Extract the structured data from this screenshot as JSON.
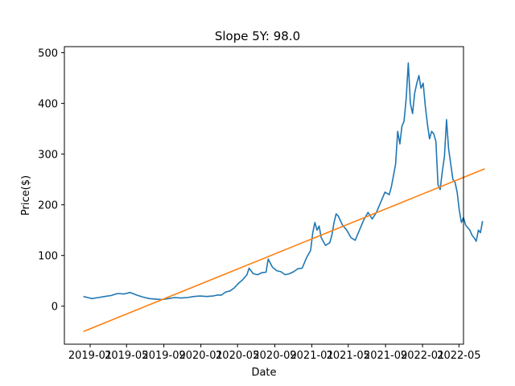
{
  "chart_data": {
    "type": "line",
    "title": "Slope 5Y: 98.0",
    "xlabel": "Date",
    "ylabel": "Price($)",
    "xlim": [
      "2018-10-08",
      "2022-05-16"
    ],
    "ylim": [
      -75,
      512
    ],
    "grid": false,
    "legend": "none",
    "x_ticks": [
      "2019-01",
      "2019-05",
      "2019-09",
      "2020-01",
      "2020-05",
      "2020-09",
      "2021-01",
      "2021-05",
      "2021-09",
      "2022-01",
      "2022-05"
    ],
    "y_ticks": [
      0,
      100,
      200,
      300,
      400,
      500
    ],
    "series": [
      {
        "color": "#1f77b4",
        "points": [
          [
            "2018-12-10",
            19
          ],
          [
            "2018-12-24",
            17
          ],
          [
            "2019-01-07",
            15
          ],
          [
            "2019-01-28",
            17
          ],
          [
            "2019-02-18",
            19
          ],
          [
            "2019-03-11",
            21
          ],
          [
            "2019-04-01",
            25
          ],
          [
            "2019-04-22",
            24
          ],
          [
            "2019-05-13",
            27
          ],
          [
            "2019-06-03",
            22
          ],
          [
            "2019-06-24",
            18
          ],
          [
            "2019-07-15",
            15
          ],
          [
            "2019-08-05",
            14
          ],
          [
            "2019-08-26",
            13
          ],
          [
            "2019-09-16",
            15
          ],
          [
            "2019-10-07",
            17
          ],
          [
            "2019-10-28",
            16
          ],
          [
            "2019-11-18",
            17
          ],
          [
            "2019-12-09",
            19
          ],
          [
            "2019-12-30",
            20
          ],
          [
            "2020-01-20",
            19
          ],
          [
            "2020-02-10",
            20
          ],
          [
            "2020-02-24",
            22
          ],
          [
            "2020-03-09",
            22
          ],
          [
            "2020-03-23",
            28
          ],
          [
            "2020-04-06",
            30
          ],
          [
            "2020-04-20",
            36
          ],
          [
            "2020-05-04",
            45
          ],
          [
            "2020-05-18",
            52
          ],
          [
            "2020-06-01",
            62
          ],
          [
            "2020-06-08",
            75
          ],
          [
            "2020-06-22",
            64
          ],
          [
            "2020-07-06",
            62
          ],
          [
            "2020-07-20",
            66
          ],
          [
            "2020-08-03",
            67
          ],
          [
            "2020-08-10",
            93
          ],
          [
            "2020-08-24",
            77
          ],
          [
            "2020-09-07",
            70
          ],
          [
            "2020-09-21",
            68
          ],
          [
            "2020-10-05",
            62
          ],
          [
            "2020-10-19",
            64
          ],
          [
            "2020-11-02",
            68
          ],
          [
            "2020-11-16",
            74
          ],
          [
            "2020-11-30",
            75
          ],
          [
            "2020-12-14",
            95
          ],
          [
            "2020-12-28",
            110
          ],
          [
            "2021-01-04",
            145
          ],
          [
            "2021-01-11",
            165
          ],
          [
            "2021-01-18",
            150
          ],
          [
            "2021-01-25",
            158
          ],
          [
            "2021-02-01",
            135
          ],
          [
            "2021-02-15",
            120
          ],
          [
            "2021-03-01",
            125
          ],
          [
            "2021-03-08",
            140
          ],
          [
            "2021-03-15",
            165
          ],
          [
            "2021-03-22",
            182
          ],
          [
            "2021-03-29",
            178
          ],
          [
            "2021-04-12",
            160
          ],
          [
            "2021-04-26",
            150
          ],
          [
            "2021-05-10",
            135
          ],
          [
            "2021-05-24",
            130
          ],
          [
            "2021-06-07",
            150
          ],
          [
            "2021-06-21",
            170
          ],
          [
            "2021-07-05",
            185
          ],
          [
            "2021-07-19",
            172
          ],
          [
            "2021-08-02",
            185
          ],
          [
            "2021-08-16",
            205
          ],
          [
            "2021-08-30",
            225
          ],
          [
            "2021-09-13",
            220
          ],
          [
            "2021-09-20",
            235
          ],
          [
            "2021-10-04",
            280
          ],
          [
            "2021-10-11",
            345
          ],
          [
            "2021-10-18",
            320
          ],
          [
            "2021-10-25",
            355
          ],
          [
            "2021-11-01",
            365
          ],
          [
            "2021-11-08",
            410
          ],
          [
            "2021-11-15",
            480
          ],
          [
            "2021-11-22",
            400
          ],
          [
            "2021-11-29",
            380
          ],
          [
            "2021-12-06",
            420
          ],
          [
            "2021-12-13",
            440
          ],
          [
            "2021-12-20",
            455
          ],
          [
            "2021-12-27",
            430
          ],
          [
            "2022-01-03",
            440
          ],
          [
            "2022-01-10",
            395
          ],
          [
            "2022-01-17",
            360
          ],
          [
            "2022-01-24",
            330
          ],
          [
            "2022-01-31",
            345
          ],
          [
            "2022-02-07",
            340
          ],
          [
            "2022-02-14",
            325
          ],
          [
            "2022-02-21",
            240
          ],
          [
            "2022-02-28",
            230
          ],
          [
            "2022-03-07",
            265
          ],
          [
            "2022-03-14",
            295
          ],
          [
            "2022-03-21",
            368
          ],
          [
            "2022-03-28",
            310
          ],
          [
            "2022-04-04",
            280
          ],
          [
            "2022-04-11",
            250
          ],
          [
            "2022-04-18",
            245
          ],
          [
            "2022-04-25",
            225
          ],
          [
            "2022-05-02",
            190
          ],
          [
            "2022-05-09",
            165
          ],
          [
            "2022-05-16",
            175
          ],
          [
            "2022-05-23",
            160
          ],
          [
            "2022-05-30",
            155
          ],
          [
            "2022-06-06",
            150
          ],
          [
            "2022-06-13",
            140
          ],
          [
            "2022-06-20",
            135
          ],
          [
            "2022-06-27",
            128
          ],
          [
            "2022-07-04",
            150
          ],
          [
            "2022-07-11",
            145
          ],
          [
            "2022-07-18",
            168
          ]
        ]
      },
      {
        "color": "#ff7f0e",
        "points": [
          [
            "2018-12-10",
            -50
          ],
          [
            "2022-07-25",
            271
          ]
        ]
      }
    ]
  }
}
